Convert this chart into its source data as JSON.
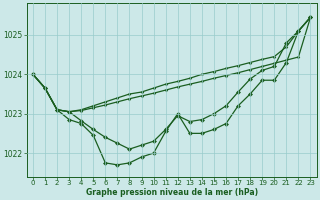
{
  "title": "Graphe pression niveau de la mer (hPa)",
  "bg_color": "#cce8e8",
  "grid_color": "#99cccc",
  "line_color": "#1a5e20",
  "xlim": [
    -0.5,
    23.5
  ],
  "ylim": [
    1021.4,
    1025.8
  ],
  "yticks": [
    1022,
    1023,
    1024,
    1025
  ],
  "xticks": [
    0,
    1,
    2,
    3,
    4,
    5,
    6,
    7,
    8,
    9,
    10,
    11,
    12,
    13,
    14,
    15,
    16,
    17,
    18,
    19,
    20,
    21,
    22,
    23
  ],
  "series_wavy": [
    1024.0,
    1023.65,
    1023.1,
    1022.85,
    1022.75,
    1022.45,
    1021.75,
    1021.7,
    1021.75,
    1021.9,
    1022.0,
    1022.55,
    1023.0,
    1022.5,
    1022.5,
    1022.6,
    1022.75,
    1023.2,
    1023.5,
    1023.85,
    1023.85,
    1024.3,
    1025.1,
    1025.45
  ],
  "series_line1": [
    1024.0,
    1023.65,
    1023.1,
    1023.05,
    1023.1,
    1023.2,
    1023.3,
    1023.4,
    1023.5,
    1023.55,
    1023.65,
    1023.75,
    1023.82,
    1023.9,
    1024.0,
    1024.07,
    1024.15,
    1024.22,
    1024.3,
    1024.38,
    1024.45,
    1024.7,
    1025.1,
    1025.45
  ],
  "series_line2": [
    1024.0,
    1023.65,
    1023.1,
    1023.05,
    1023.08,
    1023.15,
    1023.22,
    1023.3,
    1023.38,
    1023.45,
    1023.52,
    1023.6,
    1023.68,
    1023.75,
    1023.82,
    1023.9,
    1023.97,
    1024.04,
    1024.12,
    1024.2,
    1024.28,
    1024.36,
    1024.44,
    1025.45
  ],
  "series_steep": [
    1024.0,
    1023.65,
    1023.1,
    1023.05,
    1022.82,
    1022.6,
    1022.4,
    1022.25,
    1022.1,
    1022.2,
    1022.3,
    1022.6,
    1022.95,
    1022.8,
    1022.85,
    1023.0,
    1023.2,
    1023.55,
    1023.88,
    1024.1,
    1024.2,
    1024.8,
    1025.1,
    1025.45
  ]
}
